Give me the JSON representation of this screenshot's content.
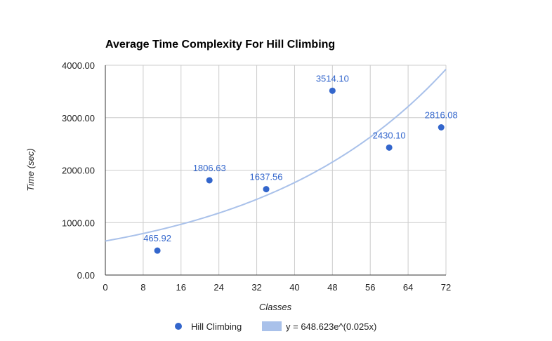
{
  "chart_data": {
    "type": "scatter",
    "title": "Average Time Complexity For Hill Climbing",
    "xlabel": "Classes",
    "ylabel": "Time (sec)",
    "xlim": [
      0,
      72
    ],
    "ylim": [
      0,
      4000
    ],
    "x_ticks": [
      "0",
      "8",
      "16",
      "24",
      "32",
      "40",
      "48",
      "56",
      "64",
      "72"
    ],
    "y_ticks": [
      "0.00",
      "1000.00",
      "2000.00",
      "3000.00",
      "4000.00"
    ],
    "x_tick_values": [
      0,
      8,
      16,
      24,
      32,
      40,
      48,
      56,
      64,
      72
    ],
    "y_tick_values": [
      0,
      1000,
      2000,
      3000,
      4000
    ],
    "grid": true,
    "legend_position": "bottom",
    "series": [
      {
        "name": "Hill Climbing",
        "color": "#3366cc",
        "points": [
          {
            "x": 11,
            "y": 465.92,
            "label": "465.92"
          },
          {
            "x": 22,
            "y": 1806.63,
            "label": "1806.63"
          },
          {
            "x": 34,
            "y": 1637.56,
            "label": "1637.56"
          },
          {
            "x": 48,
            "y": 3514.1,
            "label": "3514.10"
          },
          {
            "x": 60,
            "y": 2430.1,
            "label": "2430.10"
          },
          {
            "x": 71,
            "y": 2816.08,
            "label": "2816.08"
          }
        ]
      }
    ],
    "trendline": {
      "name": "y = 648.623e^(0.025x)",
      "type": "exponential",
      "coefficient": 648.623,
      "rate": 0.025,
      "color": "#a9c1ea"
    }
  }
}
